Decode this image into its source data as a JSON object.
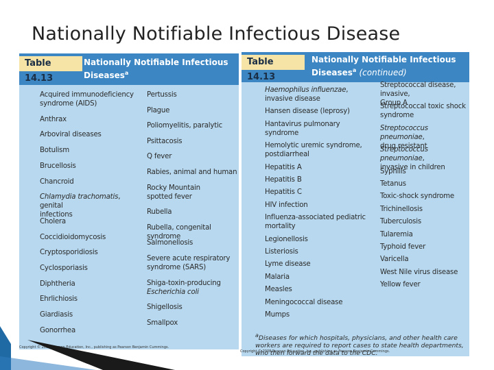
{
  "slide": {
    "title": "Nationally Notifiable Infectious Disease"
  },
  "left_table": {
    "tag": "Table 14.13",
    "title": "Nationally Notifiable Infectious Diseases",
    "superscript": "a",
    "col1": [
      [
        "Acquired immunodeficiency",
        "syndrome (AIDS)"
      ],
      [
        "Anthrax"
      ],
      [
        "Arboviral diseases"
      ],
      [
        "Botulism"
      ],
      [
        "Brucellosis"
      ],
      [
        "Chancroid"
      ],
      [
        "Chlamydia trachomatis, genital",
        "infections"
      ],
      [
        "Cholera"
      ],
      [
        "Coccidioidomycosis"
      ],
      [
        "Cryptosporidiosis"
      ],
      [
        "Cyclosporiasis"
      ],
      [
        "Diphtheria"
      ],
      [
        "Ehrlichiosis"
      ],
      [
        "Giardiasis"
      ],
      [
        "Gonorrhea"
      ]
    ],
    "col2": [
      [
        "Pertussis"
      ],
      [
        "Plague"
      ],
      [
        "Poliomyelitis, paralytic"
      ],
      [
        "Psittacosis"
      ],
      [
        "Q fever"
      ],
      [
        "Rabies, animal and human"
      ],
      [
        "Rocky Mountain",
        "spotted fever"
      ],
      [
        "Rubella"
      ],
      [
        "Rubella, congenital syndrome"
      ],
      [
        "Salmonellosis"
      ],
      [
        "Severe acute respiratory",
        "syndrome (SARS)"
      ],
      [
        "Shiga-toxin-producing",
        "Escherichia coli"
      ],
      [
        "Shigellosis"
      ],
      [
        "Smallpox"
      ]
    ],
    "copyright": "Copyright © 2008 Pearson Education, Inc., publishing as Pearson Benjamin Cummings."
  },
  "right_table": {
    "tag": "Table 14.13",
    "title": "Nationally Notifiable Infectious Diseases",
    "superscript": "a",
    "continued": "(continued)",
    "col1": [
      [
        "Haemophilus influenzae,",
        "invasive disease"
      ],
      [
        "Hansen disease (leprosy)"
      ],
      [
        "Hantavirus pulmonary",
        "syndrome"
      ],
      [
        "Hemolytic uremic syndrome,",
        "postdiarrheal"
      ],
      [
        "Hepatitis A"
      ],
      [
        "Hepatitis B"
      ],
      [
        "Hepatitis C"
      ],
      [
        "HIV infection"
      ],
      [
        "Influenza-associated pediatric",
        "mortality"
      ],
      [
        "Legionellosis"
      ],
      [
        "Listeriosis"
      ],
      [
        "Lyme disease"
      ],
      [
        "Malaria"
      ],
      [
        "Measles"
      ],
      [
        "Meningococcal disease"
      ],
      [
        "Mumps"
      ]
    ],
    "col2": [
      [
        "Streptococcal disease, invasive,",
        "Group A"
      ],
      [
        "Streptococcal toxic shock",
        "syndrome"
      ],
      [
        "Streptococcus pneumoniae,",
        "drug resistant"
      ],
      [
        "Streptococcus pneumoniae,",
        "invasive in children"
      ],
      [
        "Syphilis"
      ],
      [
        "Tetanus"
      ],
      [
        "Toxic-shock syndrome"
      ],
      [
        "Trichinellosis"
      ],
      [
        "Tuberculosis"
      ],
      [
        "Tularemia"
      ],
      [
        "Typhoid fever"
      ],
      [
        "Varicella"
      ],
      [
        "West Nile virus disease"
      ],
      [
        "Yellow fever"
      ]
    ],
    "footnote": "Diseases for which hospitals, physicians, and other health care workers are required to report cases to state health departments, who then forward the data to the CDC.",
    "copyright": "Copyright © 2008 Pearson Education, Inc., publishing as Pearson Benjamin Cummings."
  },
  "colors": {
    "panel": "#b7d8ee",
    "header": "#3b86c3",
    "tag": "#f6e3a6",
    "accent": "#1f6aa5"
  }
}
